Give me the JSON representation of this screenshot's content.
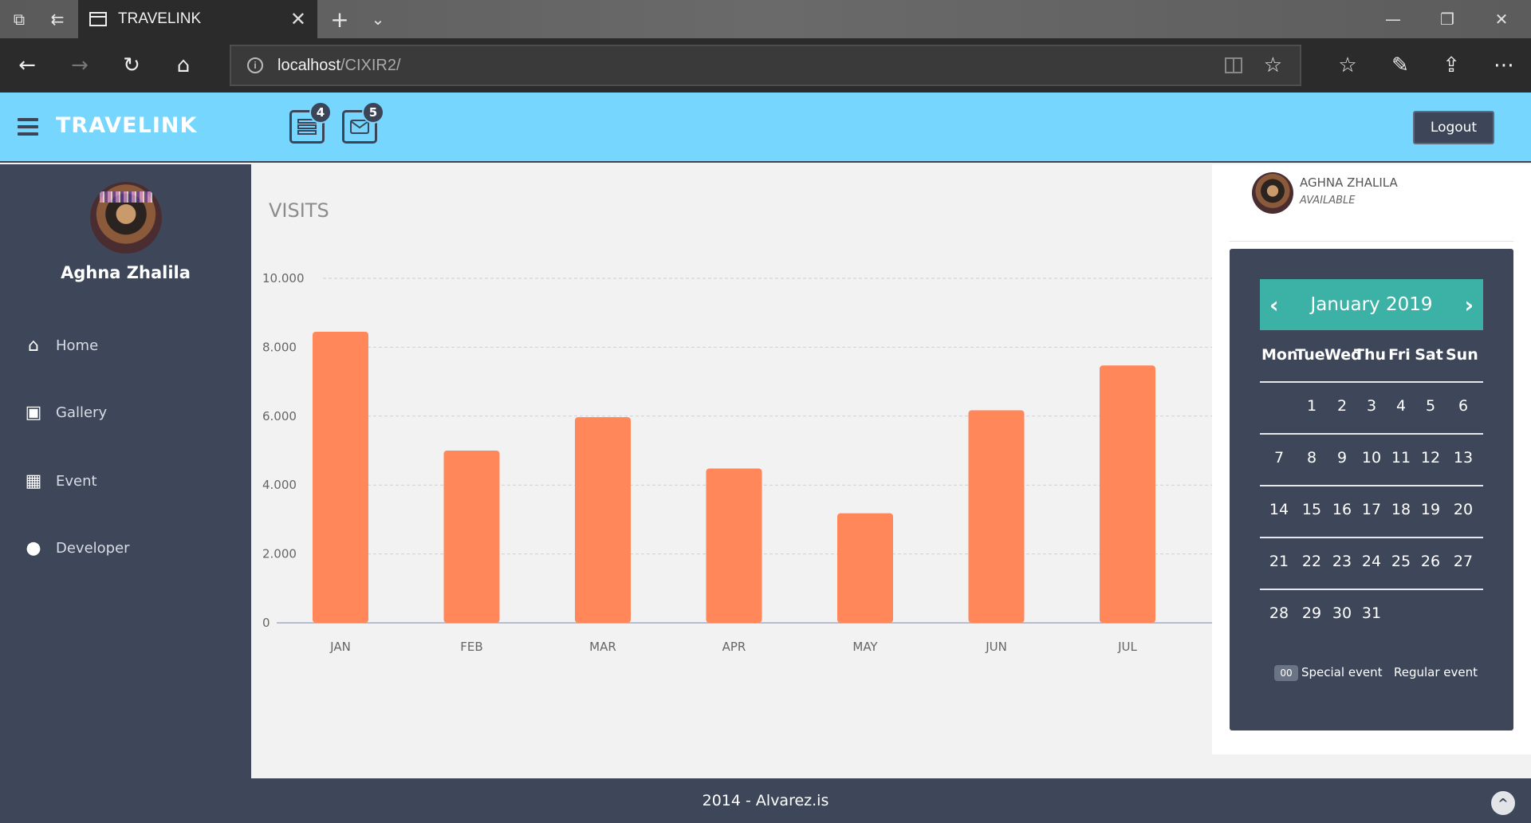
{
  "browser": {
    "tab_title": "TRAVELINK",
    "url_host": "localhost",
    "url_path": "/CIXIR2/",
    "icons": [
      "tab-preview-icon",
      "tab-aside-icon",
      "new-tab-icon",
      "tab-list-icon",
      "back-icon",
      "forward-icon",
      "refresh-icon",
      "home-icon",
      "reading-view-icon",
      "favorite-star-icon",
      "favorites-hub-icon",
      "pen-icon",
      "share-icon",
      "more-icon"
    ]
  },
  "header": {
    "brand": "TRAVELINK",
    "notifications_count": "4",
    "messages_count": "5",
    "logout_label": "Logout"
  },
  "sidebar": {
    "user_name": "Aghna Zhalila",
    "items": [
      {
        "label": "Home",
        "icon": "home-icon"
      },
      {
        "label": "Gallery",
        "icon": "gallery-icon"
      },
      {
        "label": "Event",
        "icon": "calendar-icon"
      },
      {
        "label": "Developer",
        "icon": "user-icon"
      }
    ]
  },
  "chart_data": {
    "type": "bar",
    "title": "VISITS",
    "categories": [
      "JAN",
      "FEB",
      "MAR",
      "APR",
      "MAY",
      "JUN",
      "JUL"
    ],
    "values": [
      8450,
      5000,
      5970,
      4480,
      3180,
      6170,
      7470
    ],
    "yticks": [
      "0",
      "2.000",
      "4.000",
      "6.000",
      "8.000",
      "10.000"
    ],
    "ylim": [
      0,
      10000
    ],
    "grid": true,
    "color": "#ff875a"
  },
  "right_panel": {
    "user_name": "AGHNA ZHALILA",
    "status": "AVAILABLE",
    "calendar": {
      "month_label": "January 2019",
      "days_of_week": [
        "Mon",
        "Tue",
        "Wed",
        "Thu",
        "Fri",
        "Sat",
        "Sun"
      ],
      "weeks": [
        [
          "",
          "1",
          "2",
          "3",
          "4",
          "5",
          "6"
        ],
        [
          "7",
          "8",
          "9",
          "10",
          "11",
          "12",
          "13"
        ],
        [
          "14",
          "15",
          "16",
          "17",
          "18",
          "19",
          "20"
        ],
        [
          "21",
          "22",
          "23",
          "24",
          "25",
          "26",
          "27"
        ],
        [
          "28",
          "29",
          "30",
          "31",
          "",
          "",
          ""
        ]
      ],
      "legend_special_badge": "00",
      "legend_special": "Special event",
      "legend_regular": "Regular event"
    }
  },
  "footer": {
    "text": "2014 - Alvarez.is"
  }
}
